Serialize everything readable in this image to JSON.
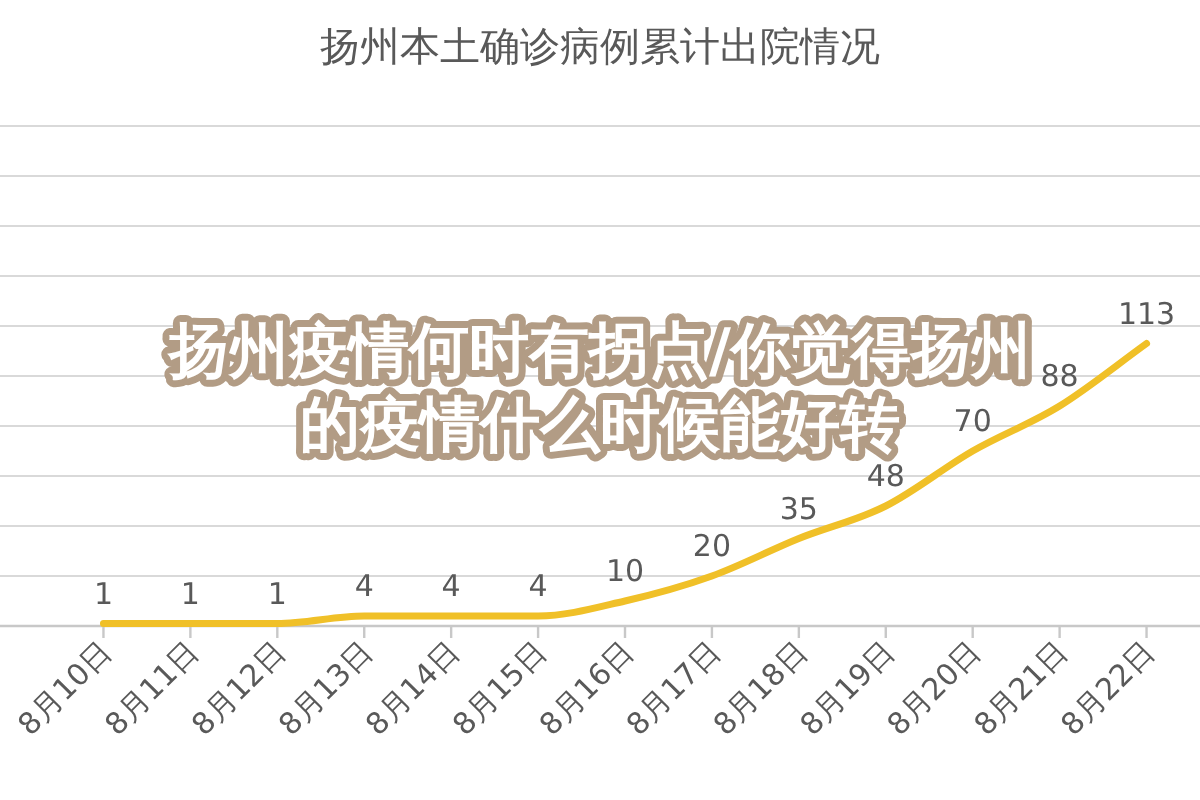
{
  "chart_data": {
    "type": "line",
    "title": "扬州本土确诊病例累计出院情况",
    "categories": [
      "8月10日",
      "8月11日",
      "8月12日",
      "8月13日",
      "8月14日",
      "8月15日",
      "8月16日",
      "8月17日",
      "8月18日",
      "8月19日",
      "8月20日",
      "8月21日",
      "8月22日"
    ],
    "series": [
      {
        "color": "#f0c028",
        "values": [
          1,
          1,
          1,
          4,
          4,
          4,
          10,
          20,
          35,
          48,
          70,
          88,
          113
        ]
      }
    ],
    "data_labels": true,
    "ylim": [
      0,
      200
    ],
    "yticks": [
      {
        "value": 0,
        "label": null
      },
      {
        "value": 20,
        "label": null
      },
      {
        "value": 40,
        "label": null
      },
      {
        "value": 60,
        "label": null
      },
      {
        "value": 80,
        "label": null
      },
      {
        "value": 100,
        "label": null
      },
      {
        "value": 120,
        "label": null
      },
      {
        "value": 140,
        "label": null
      },
      {
        "value": 160,
        "label": null
      },
      {
        "value": 180,
        "label": null
      },
      {
        "value": 200,
        "label": null
      }
    ],
    "grid": "y",
    "tick_labels": "x",
    "annotations": [
      "扬州疫情何时有拐点/你觉得扬州的疫情什么时候能好转"
    ]
  }
}
